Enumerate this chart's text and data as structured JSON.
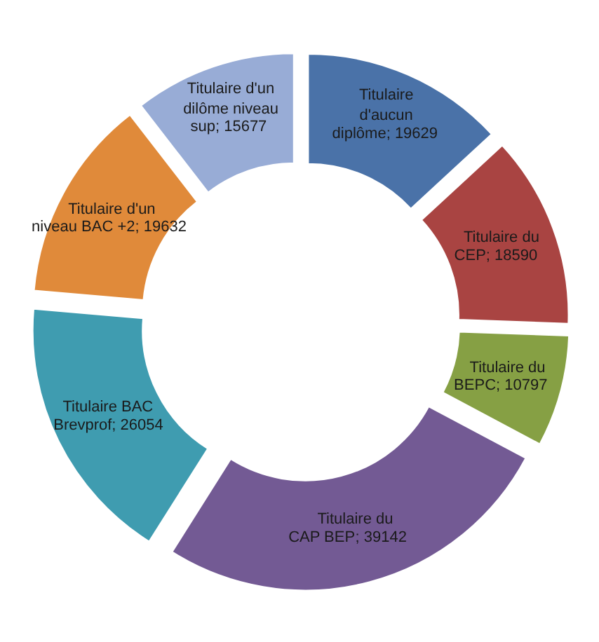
{
  "chart_data": {
    "type": "donut",
    "categories": [
      "Titulaire d'aucun diplôme",
      "Titulaire du CEP",
      "Titulaire du BEPC",
      "Titulaire du CAP BEP",
      "Titulaire BAC Brevprof",
      "Titulaire d'un niveau BAC +2",
      "Titulaire d'un dilôme niveau sup"
    ],
    "values": [
      19629,
      18590,
      10797,
      39142,
      26054,
      19632,
      15677
    ],
    "colors": [
      "#4a72a8",
      "#a94442",
      "#86a044",
      "#735a94",
      "#3f9cb0",
      "#e08a3a",
      "#98acd6"
    ],
    "value_labels": [
      "; 19629",
      "; 18590",
      "; 10797",
      "; 39142",
      "; 26054",
      "; 19632",
      "; 15677"
    ]
  }
}
